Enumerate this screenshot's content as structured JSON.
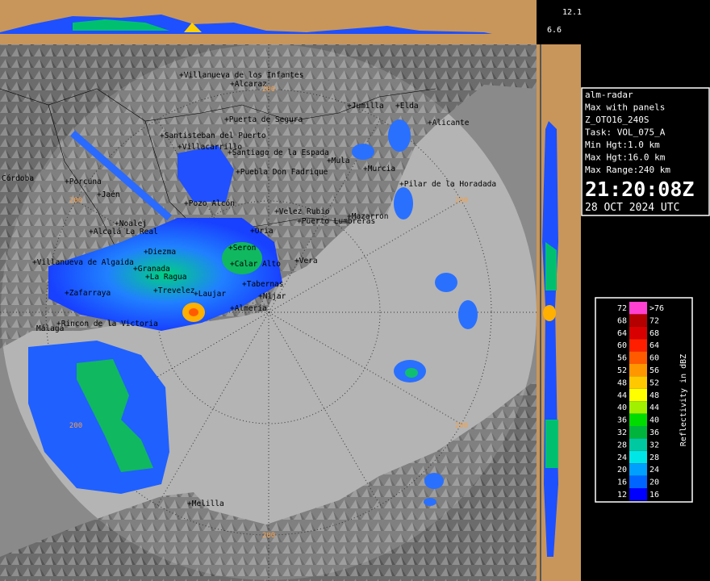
{
  "info": {
    "lines": [
      "alm-radar",
      "Max with panels",
      "Z_OTO16_240S",
      "Task: VOL_075_A",
      "Min Hgt:1.0 km",
      "Max Hgt:16.0 km",
      "Max Range:240 km"
    ],
    "time": "21:20:08Z",
    "date": "28 OCT 2024 UTC"
  },
  "panel_labels": [
    "12.1",
    "6.6"
  ],
  "range_labels": [
    "200",
    "200",
    "200",
    "200",
    "200",
    "200"
  ],
  "places": [
    "+Villanueva de los Infantes",
    "+Alcaraz",
    "+Jumilla",
    "+Elda",
    "+Puerta de Segura",
    "+Alicante",
    "+Santisteban del Puerto",
    "+Villacarrillo",
    "+Santiago de la Espada",
    "+Mula",
    "+Murcia",
    "+Puebla Don Fadrique",
    "Córdoba",
    "+Porcuna",
    "+Pilar de la Horadada",
    "+Jaén",
    "+Pozo Alcón",
    "+Velez Rubio",
    "+Puerto Lumbreras",
    "+Mazarron",
    "+Noalej",
    "+Alcalá La Real",
    "+Oria",
    "+Seron",
    "+Diezma",
    "+Villanueva de Algaida",
    "+Granada",
    "+Calar Alto",
    "+Vera",
    "+La Ragua",
    "+Zafarraya",
    "+Trevelez",
    "+Laujar",
    "+Tabernas",
    "+Nijar",
    "+Almería",
    "+Rincon de la Victoria",
    "Málaga",
    "+Melilla"
  ],
  "legend": {
    "title": "Reflectivity in dBZ",
    "rows": [
      {
        "low": "72",
        "high": ">76",
        "color": "#ff40d0"
      },
      {
        "low": "68",
        "high": "72",
        "color": "#b40000"
      },
      {
        "low": "64",
        "high": "68",
        "color": "#d80000"
      },
      {
        "low": "60",
        "high": "64",
        "color": "#ff1e00"
      },
      {
        "low": "56",
        "high": "60",
        "color": "#ff5a00"
      },
      {
        "low": "52",
        "high": "56",
        "color": "#ff9600"
      },
      {
        "low": "48",
        "high": "52",
        "color": "#ffc800"
      },
      {
        "low": "44",
        "high": "48",
        "color": "#ffff00"
      },
      {
        "low": "40",
        "high": "44",
        "color": "#a0f000"
      },
      {
        "low": "36",
        "high": "40",
        "color": "#00dc00"
      },
      {
        "low": "32",
        "high": "36",
        "color": "#00b43c"
      },
      {
        "low": "28",
        "high": "32",
        "color": "#00c8a0"
      },
      {
        "low": "24",
        "high": "28",
        "color": "#00e6e6"
      },
      {
        "low": "20",
        "high": "24",
        "color": "#00a0ff"
      },
      {
        "low": "16",
        "high": "20",
        "color": "#0064ff"
      },
      {
        "low": "12",
        "high": "16",
        "color": "#0000ff"
      }
    ]
  }
}
